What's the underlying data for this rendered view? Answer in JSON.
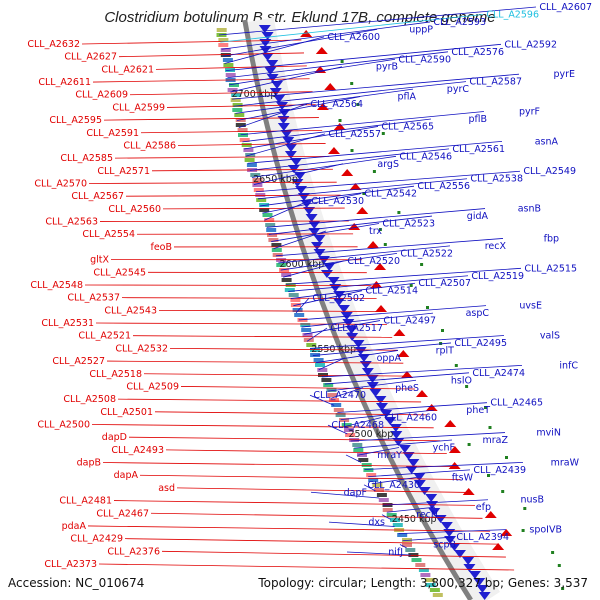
{
  "title": "Clostridium botulinum B str. Eklund 17B, complete genome",
  "footer": {
    "accession": "Accession: NC_010674",
    "summary": "Topology: circular; Length: 3,800,327 bp; Genes: 3,537"
  },
  "colors": {
    "left_labels": "#e00000",
    "right_labels": "#1010c0",
    "highlight_label": "#20c0e0",
    "backbone": "#808080",
    "forward_genes": "#e00000",
    "reverse_genes": "#2020d0"
  },
  "position_ticks": [
    "2700 kbp",
    "2650 kbp",
    "2600 kbp",
    "2550 kbp",
    "2500 kbp",
    "2450 kbp"
  ],
  "left_labels": [
    "CLL_A2632",
    "CLL_A2627",
    "CLL_A2621",
    "CLL_A2611",
    "CLL_A2609",
    "CLL_A2599",
    "CLL_A2595",
    "CLL_A2591",
    "CLL_A2586",
    "CLL_A2585",
    "CLL_A2571",
    "CLL_A2570",
    "CLL_A2567",
    "CLL_A2560",
    "CLL_A2563",
    "CLL_A2554",
    "feoB",
    "gltX",
    "CLL_A2545",
    "CLL_A2548",
    "CLL_A2537",
    "CLL_A2543",
    "CLL_A2531",
    "CLL_A2521",
    "CLL_A2532",
    "CLL_A2527",
    "CLL_A2518",
    "CLL_A2509",
    "CLL_A2508",
    "CLL_A2501",
    "CLL_A2500",
    "dapD",
    "CLL_A2493",
    "dapB",
    "dapA",
    "asd",
    "CLL_A2481",
    "CLL_A2467",
    "pdaA",
    "CLL_A2429",
    "CLL_A2376",
    "CLL_A2373"
  ],
  "right_labels": [
    "CLL_A2607",
    "CLL_A2596",
    "CLL_A2593",
    "uppP",
    "CLL_A2600",
    "CLL_A2592",
    "CLL_A2576",
    "CLL_A2590",
    "pyrB",
    "pyrE",
    "CLL_A2587",
    "pyrC",
    "pflA",
    "CLL_A2564",
    "pyrF",
    "pflB",
    "CLL_A2565",
    "CLL_A2557",
    "asnA",
    "CLL_A2561",
    "CLL_A2546",
    "argS",
    "CLL_A2549",
    "CLL_A2538",
    "CLL_A2556",
    "CLL_A2542",
    "CLL_A2530",
    "asnB",
    "gidA",
    "CLL_A2523",
    "trx",
    "fbp",
    "recX",
    "CLL_A2522",
    "CLL_A2520",
    "CLL_A2515",
    "CLL_A2519",
    "CLL_A2507",
    "CLL_A2514",
    "CLL_A2502",
    "uvsE",
    "aspC",
    "CLL_A2497",
    "CLL_A2517",
    "valS",
    "CLL_A2495",
    "rplT",
    "oppA",
    "infC",
    "CLL_A2474",
    "hslO",
    "pheS",
    "CLL_A2470",
    "CLL_A2465",
    "pheT",
    "CLL_A2460",
    "CLL_A2468",
    "mviN",
    "mraZ",
    "ychF",
    "mraY",
    "mraW",
    "CLL_A2439",
    "ftsW",
    "CLL_A2430",
    "dapF",
    "nusB",
    "efp",
    "recN",
    "dxs",
    "spoIVB",
    "CLL_A2394",
    "scpB",
    "nifJ"
  ]
}
